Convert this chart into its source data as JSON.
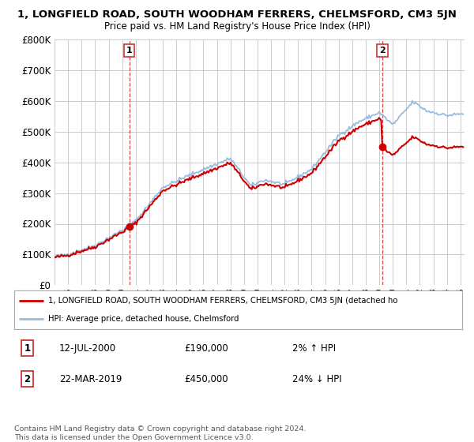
{
  "title": "1, LONGFIELD ROAD, SOUTH WOODHAM FERRERS, CHELMSFORD, CM3 5JN",
  "subtitle": "Price paid vs. HM Land Registry's House Price Index (HPI)",
  "legend_line1": "1, LONGFIELD ROAD, SOUTH WOODHAM FERRERS, CHELMSFORD, CM3 5JN (detached ho",
  "legend_line2": "HPI: Average price, detached house, Chelmsford",
  "annotation1_label": "1",
  "annotation1_date": "12-JUL-2000",
  "annotation1_price": "£190,000",
  "annotation1_hpi": "2% ↑ HPI",
  "annotation2_label": "2",
  "annotation2_date": "22-MAR-2019",
  "annotation2_price": "£450,000",
  "annotation2_hpi": "24% ↓ HPI",
  "footnote": "Contains HM Land Registry data © Crown copyright and database right 2024.\nThis data is licensed under the Open Government Licence v3.0.",
  "sale1_year": 2000.53,
  "sale1_value": 190000,
  "sale2_year": 2019.22,
  "sale2_value": 450000,
  "ylim": [
    0,
    800000
  ],
  "yticks": [
    0,
    100000,
    200000,
    300000,
    400000,
    500000,
    600000,
    700000,
    800000
  ],
  "bg_color": "#ffffff",
  "plot_bg_color": "#ffffff",
  "grid_color": "#cccccc",
  "line_color_red": "#cc0000",
  "line_color_blue": "#99bbdd",
  "vline_color": "#cc3333",
  "marker_color_red": "#cc0000"
}
